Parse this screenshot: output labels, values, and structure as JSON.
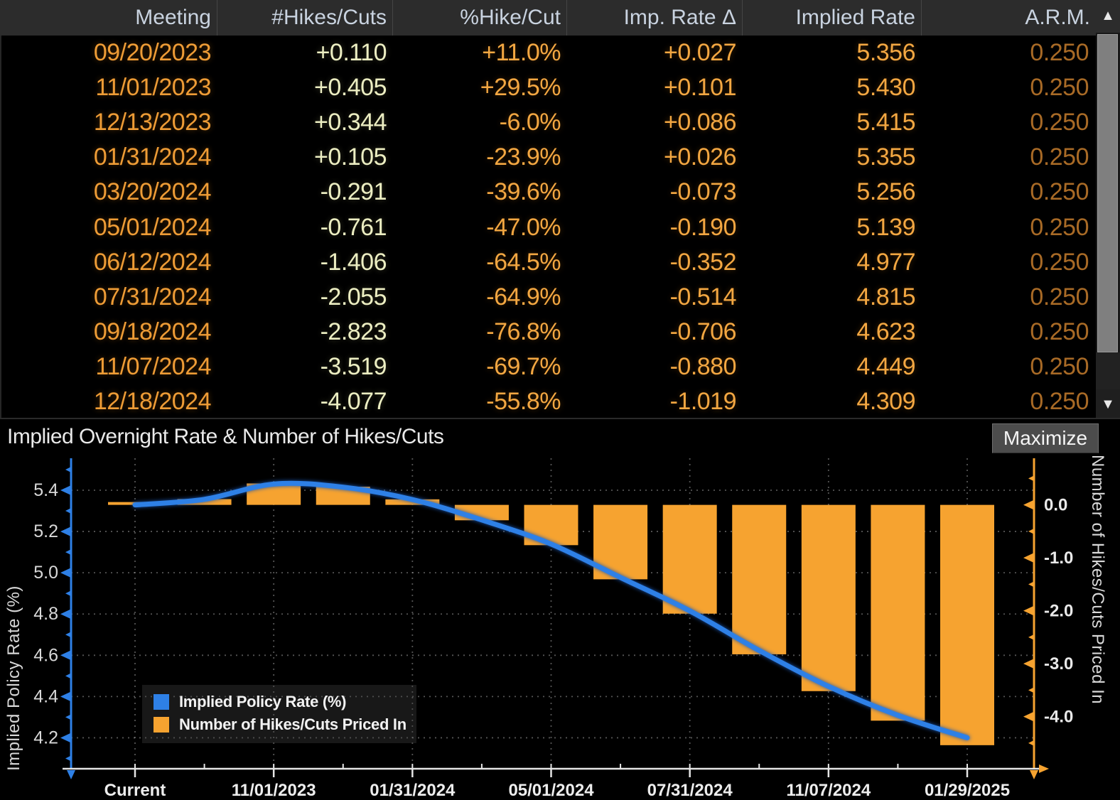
{
  "table": {
    "columns": [
      "Meeting",
      "#Hikes/Cuts",
      "%Hike/Cut",
      "Imp. Rate Δ",
      "Implied Rate",
      "A.R.M."
    ],
    "rows": [
      {
        "meeting": "09/20/2023",
        "hikes_cuts": "+0.110",
        "pct_hike_cut": "+11.0%",
        "imp_rate_delta": "+0.027",
        "implied_rate": "5.356",
        "arm": "0.250"
      },
      {
        "meeting": "11/01/2023",
        "hikes_cuts": "+0.405",
        "pct_hike_cut": "+29.5%",
        "imp_rate_delta": "+0.101",
        "implied_rate": "5.430",
        "arm": "0.250"
      },
      {
        "meeting": "12/13/2023",
        "hikes_cuts": "+0.344",
        "pct_hike_cut": "-6.0%",
        "imp_rate_delta": "+0.086",
        "implied_rate": "5.415",
        "arm": "0.250"
      },
      {
        "meeting": "01/31/2024",
        "hikes_cuts": "+0.105",
        "pct_hike_cut": "-23.9%",
        "imp_rate_delta": "+0.026",
        "implied_rate": "5.355",
        "arm": "0.250"
      },
      {
        "meeting": "03/20/2024",
        "hikes_cuts": "-0.291",
        "pct_hike_cut": "-39.6%",
        "imp_rate_delta": "-0.073",
        "implied_rate": "5.256",
        "arm": "0.250"
      },
      {
        "meeting": "05/01/2024",
        "hikes_cuts": "-0.761",
        "pct_hike_cut": "-47.0%",
        "imp_rate_delta": "-0.190",
        "implied_rate": "5.139",
        "arm": "0.250"
      },
      {
        "meeting": "06/12/2024",
        "hikes_cuts": "-1.406",
        "pct_hike_cut": "-64.5%",
        "imp_rate_delta": "-0.352",
        "implied_rate": "4.977",
        "arm": "0.250"
      },
      {
        "meeting": "07/31/2024",
        "hikes_cuts": "-2.055",
        "pct_hike_cut": "-64.9%",
        "imp_rate_delta": "-0.514",
        "implied_rate": "4.815",
        "arm": "0.250"
      },
      {
        "meeting": "09/18/2024",
        "hikes_cuts": "-2.823",
        "pct_hike_cut": "-76.8%",
        "imp_rate_delta": "-0.706",
        "implied_rate": "4.623",
        "arm": "0.250"
      },
      {
        "meeting": "11/07/2024",
        "hikes_cuts": "-3.519",
        "pct_hike_cut": "-69.7%",
        "imp_rate_delta": "-0.880",
        "implied_rate": "4.449",
        "arm": "0.250"
      },
      {
        "meeting": "12/18/2024",
        "hikes_cuts": "-4.077",
        "pct_hike_cut": "-55.8%",
        "imp_rate_delta": "-1.019",
        "implied_rate": "4.309",
        "arm": "0.250"
      }
    ],
    "sort_arrow": "▲"
  },
  "scrollbar": {
    "up_icon": "▲",
    "down_icon": "▼"
  },
  "chart_header": {
    "title": "Implied Overnight Rate & Number of Hikes/Cuts",
    "maximize_label": "Maximize"
  },
  "chart_data": {
    "type": "bar+line",
    "title": "Implied Overnight Rate & Number of Hikes/Cuts",
    "categories": [
      "Current",
      "09/20/2023",
      "11/01/2023",
      "12/13/2023",
      "01/31/2024",
      "03/20/2024",
      "05/01/2024",
      "06/12/2024",
      "07/31/2024",
      "09/18/2024",
      "11/07/2024",
      "12/18/2024",
      "01/29/2025"
    ],
    "series": [
      {
        "name": "Implied Policy Rate (%)",
        "type": "line",
        "axis": "left",
        "values": [
          5.329,
          5.356,
          5.43,
          5.415,
          5.355,
          5.256,
          5.139,
          4.977,
          4.815,
          4.623,
          4.449,
          4.309,
          4.2
        ]
      },
      {
        "name": "Number of Hikes/Cuts Priced In",
        "type": "bar",
        "axis": "right",
        "values": [
          0.02,
          0.11,
          0.405,
          0.344,
          0.105,
          -0.291,
          -0.761,
          -1.406,
          -2.055,
          -2.823,
          -3.519,
          -4.077,
          -4.54
        ]
      }
    ],
    "left_axis": {
      "label": "Implied Policy Rate (%)",
      "ticks": [
        5.4,
        5.2,
        5.0,
        4.8,
        4.6,
        4.4,
        4.2
      ],
      "range": [
        4.05,
        5.555
      ]
    },
    "right_axis": {
      "label": "Number of Hikes/Cuts Priced In",
      "ticks": [
        0.0,
        -1.0,
        -2.0,
        -3.0,
        -4.0
      ],
      "minor_ticks": [
        0.5,
        -0.5,
        -1.5,
        -2.5,
        -3.5,
        -4.5
      ]
    },
    "x_axis": {
      "labeled_indices": [
        0,
        2,
        4,
        6,
        8,
        10,
        12
      ]
    },
    "grid": true,
    "legend_position": "bottom-left",
    "colors": {
      "line_blue": "#2e80e6",
      "bar_orange": "#f6a330",
      "grid": "#a8a8a8",
      "x_label": "#ededed",
      "tick_label": "#d8d8d8",
      "right_tick_label": "#e9e9e9",
      "axis_white": "#e5e5e5"
    }
  }
}
